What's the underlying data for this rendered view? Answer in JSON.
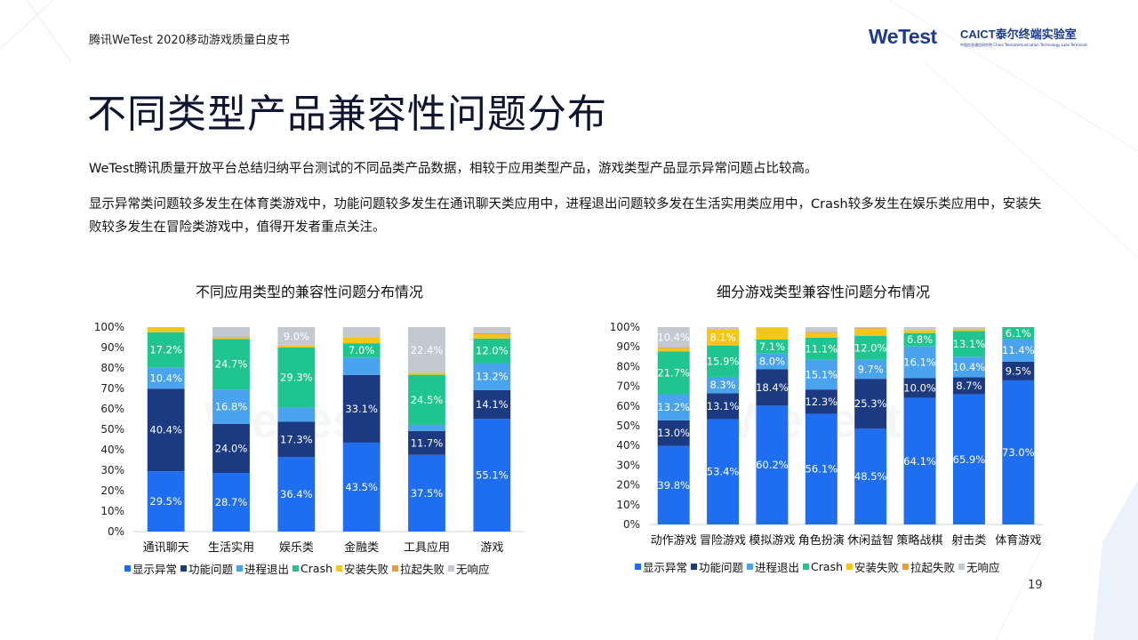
{
  "header": {
    "report_label": "腾讯WeTest   2020移动游戏质量白皮书",
    "logo_wetest": "WeTest",
    "logo_caict_main": "CAICT泰尔终端实验室",
    "logo_caict_sub": "中国信息通信研究院 China Telecommunication Technology Labs-Terminals"
  },
  "page_title": "不同类型产品兼容性问题分布",
  "paragraphs": [
    "WeTest腾讯质量开放平台总结归纳平台测试的不同品类产品数据，相较于应用类型产品，游戏类型产品显示异常问题占比较高。",
    "显示异常类问题较多发生在体育类游戏中，功能问题较多发生在通讯聊天类应用中，进程退出问题较多发在生活实用类应用中，Crash较多发生在娱乐类应用中，安装失败较多发生在冒险类游戏中，值得开发者重点关注。"
  ],
  "colors": {
    "显示异常": "#1f6ef0",
    "功能问题": "#1b3a82",
    "进程退出": "#4aa3ee",
    "Crash": "#1fc48e",
    "安装失败": "#f5c518",
    "拉起失败": "#f29a2e",
    "无响应": "#c4c8d0"
  },
  "chart_data": [
    {
      "type": "bar",
      "stacked": true,
      "title": "不同应用类型的兼容性问题分布情况",
      "categories": [
        "通讯聊天",
        "生活实用",
        "娱乐类",
        "金融类",
        "工具应用",
        "游戏"
      ],
      "ylim": [
        0,
        100
      ],
      "yticks": [
        "0%",
        "10%",
        "20%",
        "30%",
        "40%",
        "50%",
        "60%",
        "70%",
        "80%",
        "90%",
        "100%"
      ],
      "legend_position": "bottom",
      "series": [
        {
          "name": "显示异常",
          "values": [
            29.5,
            28.7,
            36.4,
            43.5,
            37.5,
            55.1
          ],
          "labels": [
            "29.5%",
            "28.7%",
            "36.4%",
            "43.5%",
            "37.5%",
            "55.1%"
          ]
        },
        {
          "name": "功能问题",
          "values": [
            40.4,
            24.0,
            17.3,
            33.1,
            11.7,
            14.1
          ],
          "labels": [
            "40.4%",
            "24.0%",
            "17.3%",
            "33.1%",
            "11.7%",
            "14.1%"
          ]
        },
        {
          "name": "进程退出",
          "values": [
            10.4,
            16.8,
            7.0,
            8.5,
            3.0,
            13.2
          ],
          "labels": [
            "10.4%",
            "16.8%",
            "",
            "",
            "",
            "13.2%"
          ]
        },
        {
          "name": "Crash",
          "values": [
            17.2,
            24.7,
            29.3,
            7.0,
            24.5,
            12.0
          ],
          "labels": [
            "17.2%",
            "24.7%",
            "29.3%",
            "7.0%",
            "24.5%",
            "12.0%"
          ]
        },
        {
          "name": "安装失败",
          "values": [
            2.5,
            0.5,
            1.0,
            3.0,
            0.9,
            2.0
          ],
          "labels": [
            "",
            "",
            "",
            "",
            "",
            ""
          ]
        },
        {
          "name": "拉起失败",
          "values": [
            0,
            0.3,
            0,
            0,
            0,
            0.6
          ],
          "labels": [
            "",
            "",
            "",
            "",
            "",
            ""
          ]
        },
        {
          "name": "无响应",
          "values": [
            0,
            5.0,
            9.0,
            4.9,
            22.4,
            3.0
          ],
          "labels": [
            "",
            "",
            "9.0%",
            "",
            "22.4%",
            ""
          ]
        }
      ]
    },
    {
      "type": "bar",
      "stacked": true,
      "title": "细分游戏类型兼容性问题分布情况",
      "categories": [
        "动作游戏",
        "冒险游戏",
        "模拟游戏",
        "角色扮演",
        "休闲益智",
        "策略战棋",
        "射击类",
        "体育游戏"
      ],
      "ylim": [
        0,
        100
      ],
      "yticks": [
        "0%",
        "10%",
        "20%",
        "30%",
        "40%",
        "50%",
        "60%",
        "70%",
        "80%",
        "90%",
        "100%"
      ],
      "legend_position": "bottom",
      "series": [
        {
          "name": "显示异常",
          "values": [
            39.8,
            53.4,
            60.2,
            56.1,
            48.5,
            64.1,
            65.9,
            73.0
          ],
          "labels": [
            "39.8%",
            "53.4%",
            "60.2%",
            "56.1%",
            "48.5%",
            "64.1%",
            "65.9%",
            "73.0%"
          ]
        },
        {
          "name": "功能问题",
          "values": [
            13.0,
            13.1,
            18.4,
            12.3,
            25.3,
            10.0,
            8.7,
            9.5
          ],
          "labels": [
            "13.0%",
            "13.1%",
            "18.4%",
            "12.3%",
            "25.3%",
            "10.0%",
            "8.7%",
            "9.5%"
          ]
        },
        {
          "name": "进程退出",
          "values": [
            13.2,
            8.3,
            8.0,
            15.1,
            9.7,
            16.1,
            10.4,
            11.4
          ],
          "labels": [
            "13.2%",
            "8.3%",
            "8.0%",
            "15.1%",
            "9.7%",
            "16.1%",
            "10.4%",
            "11.4%"
          ]
        },
        {
          "name": "Crash",
          "values": [
            21.7,
            15.9,
            7.1,
            11.1,
            12.0,
            6.8,
            13.1,
            6.1
          ],
          "labels": [
            "21.7%",
            "15.9%",
            "7.1%",
            "11.1%",
            "12.0%",
            "6.8%",
            "13.1%",
            "6.1%"
          ]
        },
        {
          "name": "安装失败",
          "values": [
            1.5,
            8.1,
            6.0,
            2.5,
            3.5,
            1.5,
            1.0,
            0
          ],
          "labels": [
            "",
            "8.1%",
            "",
            "",
            "",
            "",
            "",
            ""
          ]
        },
        {
          "name": "拉起失败",
          "values": [
            0.4,
            0.2,
            0,
            0.4,
            0.5,
            0,
            0,
            0
          ],
          "labels": [
            "",
            "",
            "",
            "",
            "",
            "",
            "",
            ""
          ]
        },
        {
          "name": "无响应",
          "values": [
            10.4,
            1.0,
            0.3,
            2.5,
            0.5,
            1.5,
            0.9,
            0
          ],
          "labels": [
            "10.4%",
            "",
            "",
            "",
            "",
            "",
            "",
            ""
          ]
        }
      ]
    }
  ],
  "page_number": "19"
}
